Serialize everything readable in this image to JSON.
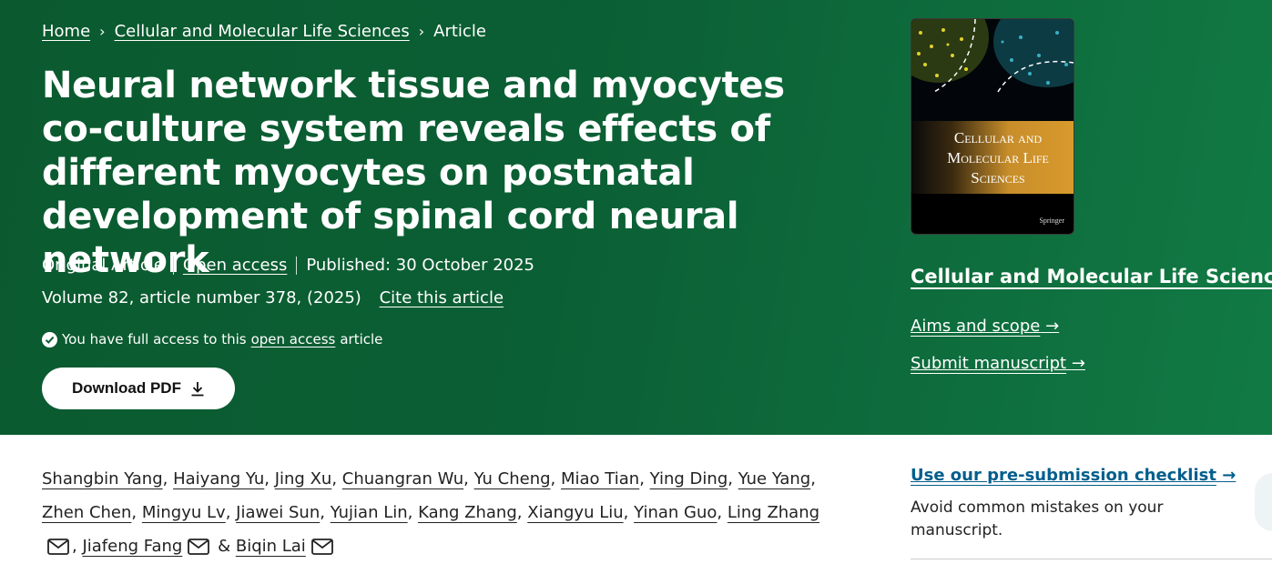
{
  "breadcrumb": {
    "home": "Home",
    "journal": "Cellular and Molecular Life Sciences",
    "current": "Article"
  },
  "article": {
    "title": "Neural network tissue and myocytes co-culture system reveals effects of different myocytes on postnatal development of spinal cord neural network",
    "type": "Original Article",
    "open_access": "Open access",
    "published": "Published: 30 October 2025",
    "volume": "Volume 82, article number 378, (2025)",
    "cite": "Cite this article",
    "access_prefix": "You have full access to this",
    "access_link": "open access",
    "access_suffix": "article",
    "download_label": "Download PDF"
  },
  "sidebar": {
    "cover_title": "Cellular and Molecular Life Sciences",
    "cover_publisher": "Springer",
    "journal_name": "Cellular and Molecular Life Sciences",
    "aims": "Aims and scope",
    "submit": "Submit manuscript",
    "checklist": "Use our pre-submission checklist",
    "checklist_desc": "Avoid common mistakes on your manuscript."
  },
  "authors": [
    "Shangbin Yang",
    "Haiyang Yu",
    "Jing Xu",
    "Chuangran Wu",
    "Yu Cheng",
    "Miao Tian",
    "Ying Ding",
    "Yue Yang",
    "Zhen Chen",
    "Mingyu Lv",
    "Jiawei Sun",
    "Yujian Lin",
    "Kang Zhang",
    "Xiangyu Liu",
    "Yinan Guo",
    "Ling Zhang",
    "Jiafeng Fang",
    "Biqin Lai"
  ],
  "authors_and": "&",
  "colors": {
    "hero": "#0b5f34",
    "link_blue": "#025e8d"
  },
  "icons": {
    "chevron": "chevron-right-icon",
    "check": "check-circle-icon",
    "download": "download-icon",
    "arrow": "arrow-right-icon",
    "mail": "mail-icon"
  }
}
